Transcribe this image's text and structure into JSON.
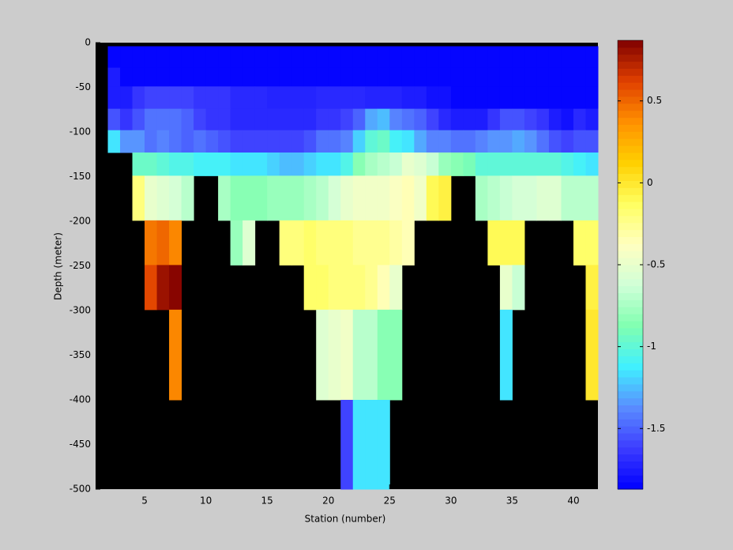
{
  "chart_data": {
    "type": "heatmap",
    "xlabel": "Station (number)",
    "ylabel": "Depth (meter)",
    "xlim": [
      1,
      42
    ],
    "ylim": [
      -500,
      0
    ],
    "xticks": [
      5,
      10,
      15,
      20,
      25,
      30,
      35,
      40
    ],
    "yticks": [
      0,
      -50,
      -100,
      -150,
      -200,
      -250,
      -300,
      -350,
      -400,
      -450,
      -500
    ],
    "x_edges": [
      1,
      2,
      3,
      4,
      5,
      6,
      7,
      8,
      9,
      10,
      11,
      12,
      13,
      14,
      15,
      16,
      17,
      18,
      19,
      20,
      21,
      22,
      23,
      24,
      25,
      26,
      27,
      28,
      29,
      30,
      31,
      32,
      33,
      34,
      35,
      36,
      37,
      38,
      39,
      40,
      41,
      42
    ],
    "y_edges": [
      -4,
      -28,
      -49,
      -74,
      -98,
      -123,
      -149,
      -199,
      -249,
      -299,
      -400,
      -500
    ],
    "values": [
      [
        null,
        -1.85,
        -1.85,
        -1.85,
        -1.85,
        -1.85,
        -1.85,
        -1.85,
        -1.85,
        -1.85,
        -1.85,
        -1.85,
        -1.85,
        -1.85,
        -1.85,
        -1.85,
        -1.85,
        -1.85,
        -1.85,
        -1.85,
        -1.85,
        -1.85,
        -1.85,
        -1.85,
        -1.85,
        -1.85,
        -1.85,
        -1.85,
        -1.85,
        -1.85,
        -1.85,
        -1.85,
        -1.85,
        -1.85,
        -1.85,
        -1.85,
        -1.85,
        -1.85,
        -1.85,
        -1.85,
        -1.85
      ],
      [
        null,
        -1.75,
        -1.85,
        -1.85,
        -1.85,
        -1.85,
        -1.85,
        -1.85,
        -1.85,
        -1.85,
        -1.85,
        -1.85,
        -1.85,
        -1.85,
        -1.85,
        -1.85,
        -1.85,
        -1.85,
        -1.85,
        -1.85,
        -1.85,
        -1.85,
        -1.85,
        -1.85,
        -1.85,
        -1.85,
        -1.85,
        -1.85,
        -1.85,
        -1.85,
        -1.85,
        -1.85,
        -1.85,
        -1.85,
        -1.85,
        -1.85,
        -1.85,
        -1.85,
        -1.85,
        -1.85,
        -1.85
      ],
      [
        null,
        -1.75,
        -1.75,
        -1.65,
        -1.6,
        -1.6,
        -1.6,
        -1.6,
        -1.65,
        -1.65,
        -1.65,
        -1.7,
        -1.7,
        -1.7,
        -1.72,
        -1.72,
        -1.72,
        -1.72,
        -1.7,
        -1.7,
        -1.7,
        -1.7,
        -1.72,
        -1.72,
        -1.72,
        -1.75,
        -1.75,
        -1.8,
        -1.8,
        -1.85,
        -1.85,
        -1.85,
        -1.85,
        -1.85,
        -1.85,
        -1.85,
        -1.85,
        -1.85,
        -1.85,
        -1.85,
        -1.85
      ],
      [
        null,
        -1.55,
        -1.65,
        -1.55,
        -1.45,
        -1.45,
        -1.45,
        -1.5,
        -1.6,
        -1.65,
        -1.65,
        -1.7,
        -1.7,
        -1.7,
        -1.7,
        -1.7,
        -1.7,
        -1.7,
        -1.65,
        -1.65,
        -1.6,
        -1.5,
        -1.3,
        -1.25,
        -1.4,
        -1.45,
        -1.5,
        -1.6,
        -1.7,
        -1.75,
        -1.75,
        -1.75,
        -1.65,
        -1.55,
        -1.55,
        -1.6,
        -1.65,
        -1.75,
        -1.8,
        -1.7,
        -1.75
      ],
      [
        null,
        -1.15,
        -1.35,
        -1.35,
        -1.45,
        -1.4,
        -1.45,
        -1.5,
        -1.45,
        -1.5,
        -1.55,
        -1.6,
        -1.6,
        -1.6,
        -1.6,
        -1.6,
        -1.6,
        -1.55,
        -1.45,
        -1.45,
        -1.4,
        -1.2,
        -1.0,
        -0.95,
        -1.1,
        -1.15,
        -1.3,
        -1.4,
        -1.4,
        -1.45,
        -1.45,
        -1.4,
        -1.35,
        -1.35,
        -1.3,
        -1.35,
        -1.45,
        -1.55,
        -1.6,
        -1.55,
        -1.55
      ],
      [
        null,
        null,
        null,
        -0.95,
        -0.95,
        -1.0,
        -1.05,
        -1.05,
        -1.1,
        -1.1,
        -1.1,
        -1.15,
        -1.15,
        -1.15,
        -1.2,
        -1.25,
        -1.25,
        -1.2,
        -1.15,
        -1.15,
        -1.05,
        -0.85,
        -0.75,
        -0.7,
        -0.65,
        -0.5,
        -0.55,
        -0.65,
        -0.8,
        -0.85,
        -0.9,
        -1.0,
        -1.0,
        -1.0,
        -1.0,
        -1.0,
        -1.0,
        -1.0,
        -1.05,
        -1.1,
        -1.15
      ],
      [
        null,
        null,
        null,
        -0.2,
        -0.5,
        -0.55,
        -0.6,
        -0.7,
        null,
        null,
        -0.75,
        -0.85,
        -0.85,
        -0.85,
        -0.8,
        -0.8,
        -0.8,
        -0.75,
        -0.7,
        -0.6,
        -0.5,
        -0.45,
        -0.45,
        -0.45,
        -0.4,
        -0.35,
        -0.45,
        -0.1,
        -0.05,
        null,
        null,
        -0.75,
        -0.7,
        -0.65,
        -0.6,
        -0.6,
        -0.55,
        -0.55,
        -0.7,
        -0.7,
        -0.7
      ],
      [
        null,
        null,
        null,
        null,
        0.45,
        0.5,
        0.4,
        null,
        null,
        null,
        null,
        -0.8,
        -0.55,
        null,
        null,
        -0.2,
        -0.2,
        -0.15,
        -0.2,
        -0.2,
        -0.2,
        -0.25,
        -0.25,
        -0.25,
        -0.3,
        -0.35,
        null,
        null,
        null,
        null,
        null,
        null,
        -0.1,
        -0.1,
        -0.1,
        null,
        null,
        null,
        null,
        -0.15,
        -0.15
      ],
      [
        null,
        null,
        null,
        null,
        0.6,
        0.8,
        0.85,
        null,
        null,
        null,
        null,
        null,
        null,
        null,
        null,
        null,
        null,
        -0.15,
        -0.15,
        -0.2,
        -0.2,
        -0.2,
        -0.25,
        -0.35,
        -0.5,
        null,
        null,
        null,
        null,
        null,
        null,
        null,
        null,
        -0.5,
        -0.65,
        null,
        null,
        null,
        null,
        null,
        -0.05
      ],
      [
        null,
        null,
        null,
        null,
        null,
        null,
        0.4,
        null,
        null,
        null,
        null,
        null,
        null,
        null,
        null,
        null,
        null,
        null,
        -0.55,
        -0.5,
        -0.45,
        -0.7,
        -0.7,
        -0.85,
        -0.85,
        null,
        null,
        null,
        null,
        null,
        null,
        null,
        null,
        -1.15,
        null,
        null,
        null,
        null,
        null,
        null,
        0.0
      ],
      [
        null,
        null,
        null,
        null,
        null,
        null,
        null,
        null,
        null,
        null,
        null,
        null,
        null,
        null,
        null,
        null,
        null,
        null,
        null,
        null,
        -1.6,
        -1.15,
        -1.15,
        -1.15,
        null,
        null,
        null,
        null,
        null,
        null,
        null,
        null,
        null,
        null,
        null,
        null,
        null,
        null,
        null,
        null,
        null
      ]
    ],
    "clim": [
      -1.87,
      0.87
    ],
    "colormap": [
      "#0000ff",
      "#3c3cff",
      "#5a8cff",
      "#40f0ff",
      "#80ffb0",
      "#d0ffd8",
      "#ffffc0",
      "#ffff60",
      "#ffd000",
      "#ff9000",
      "#e04000",
      "#800000"
    ],
    "cticks": [
      0.5,
      0,
      -0.5,
      -1,
      -1.5
    ],
    "background": "#000000"
  }
}
